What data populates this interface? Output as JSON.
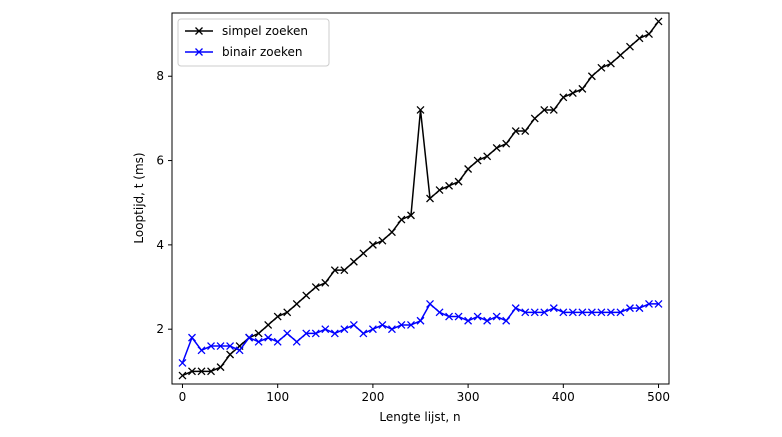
{
  "chart_data": {
    "type": "line",
    "title": "",
    "xlabel": "Lengte lijst, n",
    "ylabel": "Looptijd, t (ms)",
    "xlim": [
      -11,
      511
    ],
    "ylim": [
      0.7,
      9.5
    ],
    "xticks": [
      0,
      100,
      200,
      300,
      400,
      500
    ],
    "yticks": [
      2,
      4,
      6,
      8
    ],
    "grid": false,
    "legend_position": "top-left",
    "x": [
      0,
      10,
      20,
      30,
      40,
      50,
      60,
      70,
      80,
      90,
      100,
      110,
      120,
      130,
      140,
      150,
      160,
      170,
      180,
      190,
      200,
      210,
      220,
      230,
      240,
      250,
      260,
      270,
      280,
      290,
      300,
      310,
      320,
      330,
      340,
      350,
      360,
      370,
      380,
      390,
      400,
      410,
      420,
      430,
      440,
      450,
      460,
      470,
      480,
      490,
      500
    ],
    "series": [
      {
        "name": "simpel zoeken",
        "color": "#000000",
        "marker": "x",
        "values": [
          0.9,
          1.0,
          1.0,
          1.0,
          1.1,
          1.4,
          1.6,
          1.8,
          1.9,
          2.1,
          2.3,
          2.4,
          2.6,
          2.8,
          3.0,
          3.1,
          3.4,
          3.4,
          3.6,
          3.8,
          4.0,
          4.1,
          4.3,
          4.6,
          4.7,
          7.2,
          5.1,
          5.3,
          5.4,
          5.5,
          5.8,
          6.0,
          6.1,
          6.3,
          6.4,
          6.7,
          6.7,
          7.0,
          7.2,
          7.2,
          7.5,
          7.6,
          7.7,
          8.0,
          8.2,
          8.3,
          8.5,
          8.7,
          8.9,
          9.0,
          9.3
        ]
      },
      {
        "name": "binair zoeken",
        "color": "#0000ff",
        "marker": "x",
        "values": [
          1.2,
          1.8,
          1.5,
          1.6,
          1.6,
          1.6,
          1.5,
          1.8,
          1.7,
          1.8,
          1.7,
          1.9,
          1.7,
          1.9,
          1.9,
          2.0,
          1.9,
          2.0,
          2.1,
          1.9,
          2.0,
          2.1,
          2.0,
          2.1,
          2.1,
          2.2,
          2.6,
          2.4,
          2.3,
          2.3,
          2.2,
          2.3,
          2.2,
          2.3,
          2.2,
          2.5,
          2.4,
          2.4,
          2.4,
          2.5,
          2.4,
          2.4,
          2.4,
          2.4,
          2.4,
          2.4,
          2.4,
          2.5,
          2.5,
          2.6,
          2.6
        ]
      }
    ]
  }
}
